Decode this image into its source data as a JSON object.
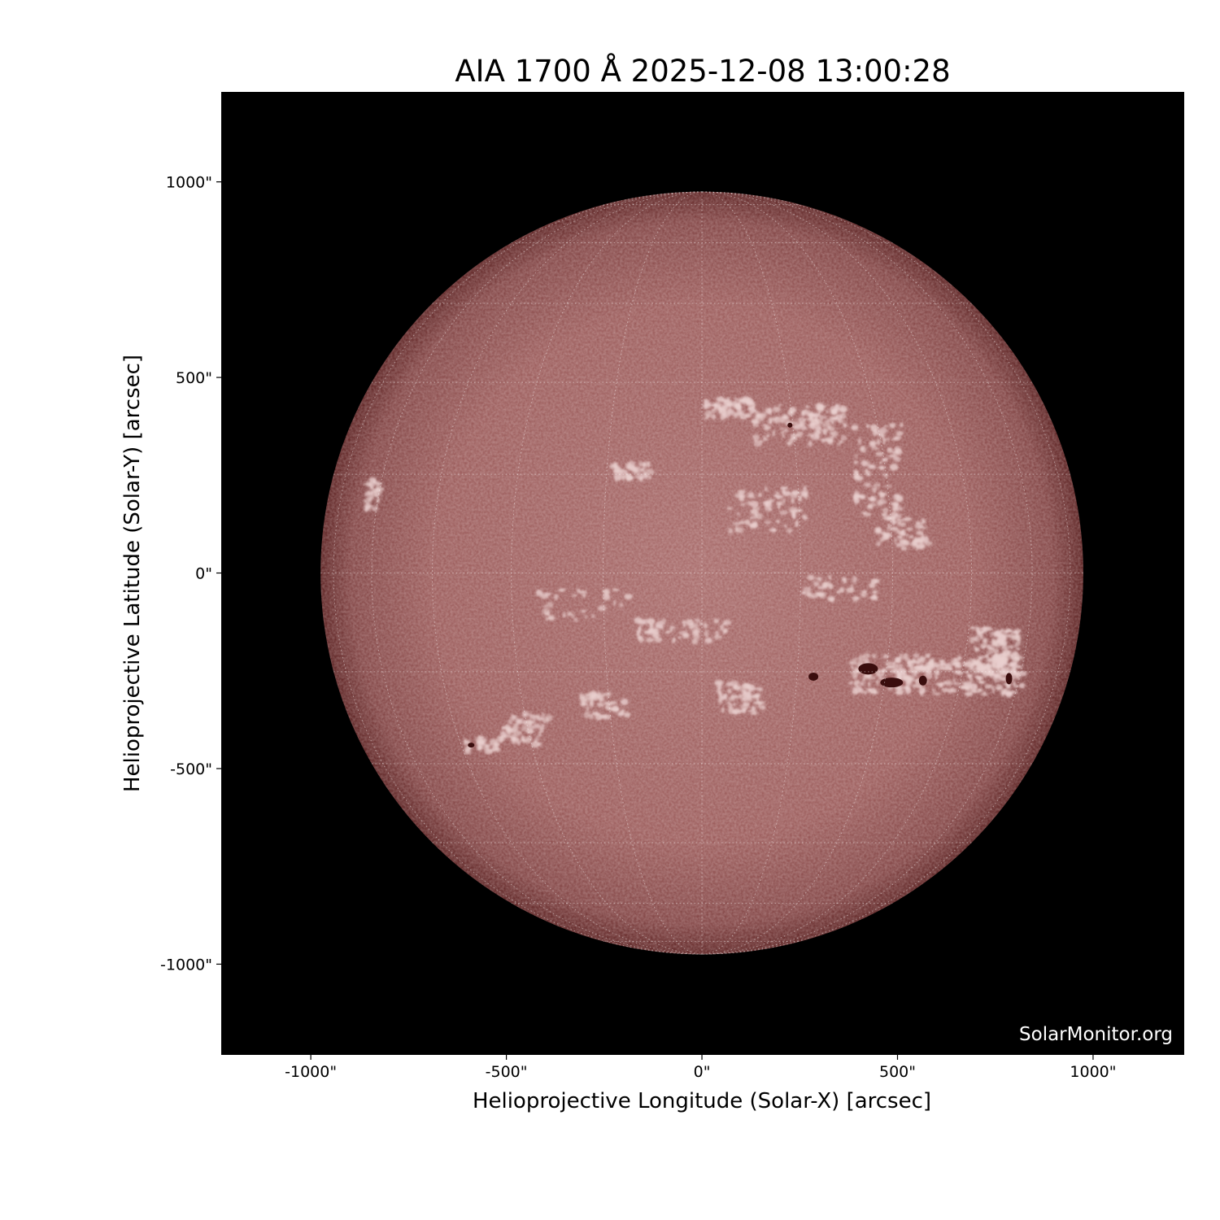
{
  "chart_data": {
    "type": "image",
    "title": "AIA 1700 Å 2025-12-08 13:00:28",
    "xlabel": "Helioprojective Longitude (Solar-X) [arcsec]",
    "ylabel": "Helioprojective Latitude (Solar-Y) [arcsec]",
    "xlim": [
      -1229,
      1233
    ],
    "ylim": [
      -1232,
      1230
    ],
    "xticks": [
      -1000,
      -500,
      0,
      500,
      1000
    ],
    "xtick_labels": [
      "-1000\"",
      "-500\"",
      "0\"",
      "500\"",
      "1000\""
    ],
    "yticks": [
      1000,
      500,
      0,
      -500,
      -1000
    ],
    "ytick_labels": [
      "1000\"",
      "500\"",
      "0\"",
      "-500\"",
      "-1000\""
    ],
    "solar_radius_arcsec": 975,
    "grid": "heliographic lat/lon, 15° spacing, dotted white",
    "colormap": "sdoaia1700 (dark red to white)",
    "background_color": "#000000",
    "watermark": "SolarMonitor.org"
  }
}
